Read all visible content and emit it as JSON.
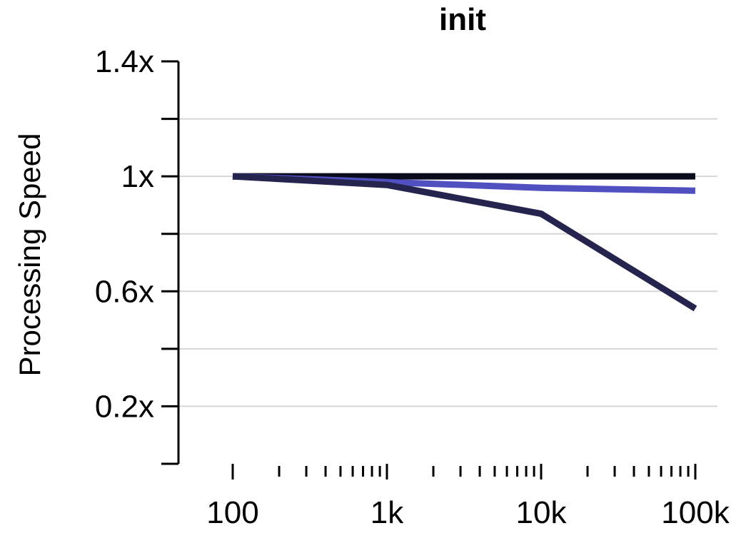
{
  "chart_data": {
    "type": "line",
    "title": "init",
    "xlabel": "",
    "ylabel": "Processing Speed",
    "x_scale": "log",
    "x": [
      100,
      1000,
      10000,
      100000
    ],
    "x_tick_labels": [
      "100",
      "1k",
      "10k",
      "100k"
    ],
    "xlim": [
      100,
      100000
    ],
    "y_ticks": [
      0.2,
      0.6,
      1.0,
      1.4
    ],
    "y_tick_labels": [
      "0.2x",
      "0.6x",
      "1x",
      "1.4x"
    ],
    "ylim": [
      0,
      1.4
    ],
    "grid": true,
    "series": [
      {
        "color": "#0b0b1e",
        "values": [
          1.0,
          1.0,
          1.0,
          1.0
        ]
      },
      {
        "color": "#5050c0",
        "values": [
          1.0,
          0.98,
          0.96,
          0.95
        ]
      },
      {
        "color": "#24244e",
        "values": [
          1.0,
          0.97,
          0.87,
          0.54
        ]
      }
    ]
  }
}
